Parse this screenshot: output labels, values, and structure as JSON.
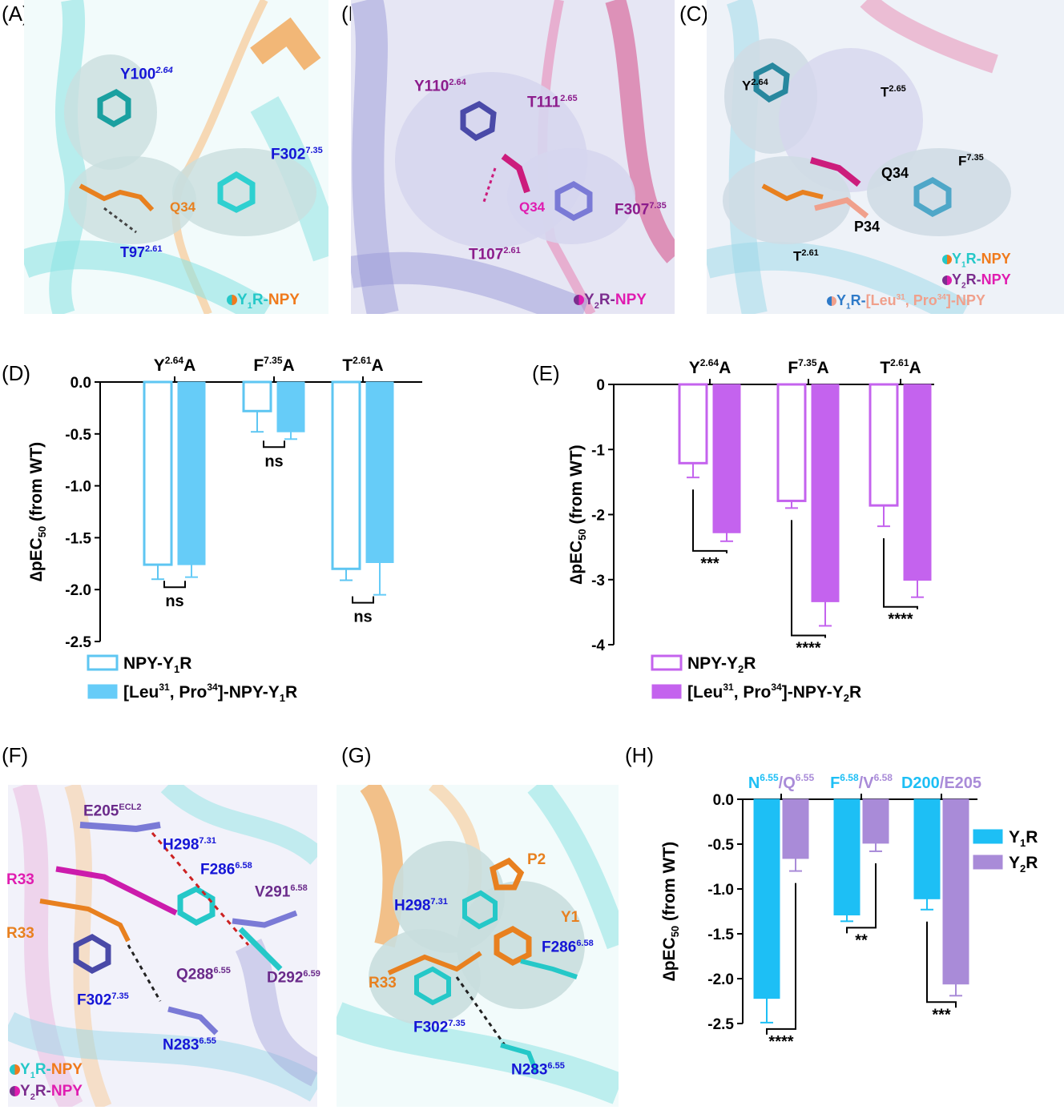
{
  "panels": {
    "A": {
      "letter": "(A)",
      "labels": {
        "y100": "Y100",
        "y100_sup": "2.64",
        "f302": "F302",
        "f302_sup": "7.35",
        "q34": "Q34",
        "t97": "T97",
        "t97_sup": "2.61"
      },
      "legend": {
        "rec": "Y",
        "sub": "1",
        "r": "R-",
        "lig": "NPY"
      }
    },
    "B": {
      "letter": "(B)",
      "labels": {
        "y110": "Y110",
        "y110_sup": "2.64",
        "t111": "T111",
        "t111_sup": "2.65",
        "q34": "Q34",
        "f307": "F307",
        "f307_sup": "7.35",
        "t107": "T107",
        "t107_sup": "2.61"
      },
      "legend": {
        "rec": "Y",
        "sub": "2",
        "r": "R-",
        "lig": "NPY"
      }
    },
    "C": {
      "letter": "(C)",
      "labels": {
        "y": "Y",
        "y_sup": "2.64",
        "t65": "T",
        "t65_sup": "2.65",
        "q34": "Q34",
        "f": "F",
        "f_sup": "7.35",
        "p34": "P34",
        "t61": "T",
        "t61_sup": "2.61"
      },
      "legend": [
        {
          "rec": "Y",
          "sub": "1",
          "r": "R-",
          "lig": "NPY"
        },
        {
          "rec": "Y",
          "sub": "2",
          "r": "R-",
          "lig": "NPY"
        },
        {
          "rec": "Y",
          "sub": "1",
          "r": "R-",
          "lig": "[Leu",
          "sup1": "31",
          "mid": ", Pro",
          "sup2": "34",
          "end": "]-NPY"
        }
      ]
    },
    "D": {
      "letter": "(D)"
    },
    "E": {
      "letter": "(E)"
    },
    "F": {
      "letter": "(F)",
      "labels": {
        "e205": "E205",
        "e205_sup": "ECL2",
        "h298": "H298",
        "h298_sup": "7.31",
        "f286": "F286",
        "f286_sup": "6.58",
        "r33a": "R33",
        "v291": "V291",
        "v291_sup": "6.58",
        "r33b": "R33",
        "q288": "Q288",
        "q288_sup": "6.55",
        "d292": "D292",
        "d292_sup": "6.59",
        "f302": "F302",
        "f302_sup": "7.35",
        "n283": "N283",
        "n283_sup": "6.55"
      },
      "legend": [
        {
          "rec": "Y",
          "sub": "1",
          "r": "R-",
          "lig": "NPY"
        },
        {
          "rec": "Y",
          "sub": "2",
          "r": "R-",
          "lig": "NPY"
        }
      ]
    },
    "G": {
      "letter": "(G)",
      "labels": {
        "p2": "P2",
        "h298": "H298",
        "h298_sup": "7.31",
        "y1": "Y1",
        "f286": "F286",
        "f286_sup": "6.58",
        "r33": "R33",
        "f302": "F302",
        "f302_sup": "7.35",
        "n283": "N283",
        "n283_sup": "6.55"
      }
    },
    "H": {
      "letter": "(H)"
    }
  },
  "colors": {
    "y1r_open": "#5ec6f2",
    "y1r_fill": "#66ccf8",
    "y2r": "#c463ee",
    "h_y1r": "#1dbff5",
    "h_y2r": "#a98bd8",
    "cyan": "#25c8c8",
    "orange": "#e8801f",
    "purple": "#7b2d8e",
    "blue": "#1515d6"
  },
  "chart_data": [
    {
      "panel": "D",
      "type": "bar",
      "categories": [
        {
          "pre": "Y",
          "sup": "2.64",
          "post": "A"
        },
        {
          "pre": "F",
          "sup": "7.35",
          "post": "A"
        },
        {
          "pre": "T",
          "sup": "2.61",
          "post": "A"
        }
      ],
      "ylabel": "∆pEC50 (from WT)",
      "ylim": [
        -2.5,
        0.0
      ],
      "yticks": [
        "0.0",
        "-0.5",
        "-1.0",
        "-1.5",
        "-2.0",
        "-2.5"
      ],
      "series": [
        {
          "name": "NPY-Y1R",
          "style": "open",
          "values": [
            -1.76,
            -0.28,
            -1.8
          ],
          "errors": [
            0.14,
            0.2,
            0.11
          ]
        },
        {
          "name": "[Leu31, Pro34]-NPY-Y1R",
          "style": "filled",
          "values": [
            -1.76,
            -0.48,
            -1.74
          ],
          "errors": [
            0.12,
            0.07,
            0.31
          ]
        }
      ],
      "significance": [
        "ns",
        "ns",
        "ns"
      ],
      "legend": [
        {
          "text": "NPY-Y",
          "sub": "1",
          "end": "R"
        },
        {
          "text": "[Leu",
          "sup1": "31",
          "mid": ", Pro",
          "sup2": "34",
          "mid2": "]-NPY-Y",
          "sub": "1",
          "end": "R"
        }
      ]
    },
    {
      "panel": "E",
      "type": "bar",
      "categories": [
        {
          "pre": "Y",
          "sup": "2.64",
          "post": "A"
        },
        {
          "pre": "F",
          "sup": "7.35",
          "post": "A"
        },
        {
          "pre": "T",
          "sup": "2.61",
          "post": "A"
        }
      ],
      "ylabel": "∆pEC50 (from WT)",
      "ylim": [
        -4,
        0
      ],
      "yticks": [
        "0",
        "-1",
        "-2",
        "-3",
        "-4"
      ],
      "series": [
        {
          "name": "NPY-Y2R",
          "style": "open",
          "values": [
            -1.21,
            -1.79,
            -1.86
          ],
          "errors": [
            0.22,
            0.11,
            0.32
          ]
        },
        {
          "name": "[Leu31, Pro34]-NPY-Y2R",
          "style": "filled",
          "values": [
            -2.28,
            -3.34,
            -3.01
          ],
          "errors": [
            0.13,
            0.37,
            0.26
          ]
        }
      ],
      "significance": [
        "***",
        "****",
        "****"
      ],
      "legend": [
        {
          "text": "NPY-Y",
          "sub": "2",
          "end": "R"
        },
        {
          "text": "[Leu",
          "sup1": "31",
          "mid": ", Pro",
          "sup2": "34",
          "mid2": "]-NPY-Y",
          "sub": "2",
          "end": "R"
        }
      ]
    },
    {
      "panel": "H",
      "type": "bar",
      "categories": [
        {
          "a": "N",
          "asup": "6.55",
          "b": "/Q",
          "bsup": "6.55"
        },
        {
          "a": "F",
          "asup": "6.58",
          "b": "/V",
          "bsup": "6.58"
        },
        {
          "a": "D200",
          "asup": "",
          "b": "/E205",
          "bsup": ""
        }
      ],
      "ylabel": "∆pEC50 (from WT)",
      "ylim": [
        -2.5,
        0.0
      ],
      "yticks": [
        "0.0",
        "-0.5",
        "-1.0",
        "-1.5",
        "-2.0",
        "-2.5"
      ],
      "series": [
        {
          "name": "Y1R",
          "values": [
            -2.22,
            -1.29,
            -1.11
          ],
          "errors": [
            0.27,
            0.07,
            0.12
          ]
        },
        {
          "name": "Y2R",
          "values": [
            -0.66,
            -0.49,
            -2.06
          ],
          "errors": [
            0.14,
            0.09,
            0.13
          ]
        }
      ],
      "significance": [
        "****",
        "**",
        "***"
      ],
      "legend": [
        {
          "text": "Y",
          "sub": "1",
          "end": "R"
        },
        {
          "text": "Y",
          "sub": "2",
          "end": "R"
        }
      ]
    }
  ]
}
